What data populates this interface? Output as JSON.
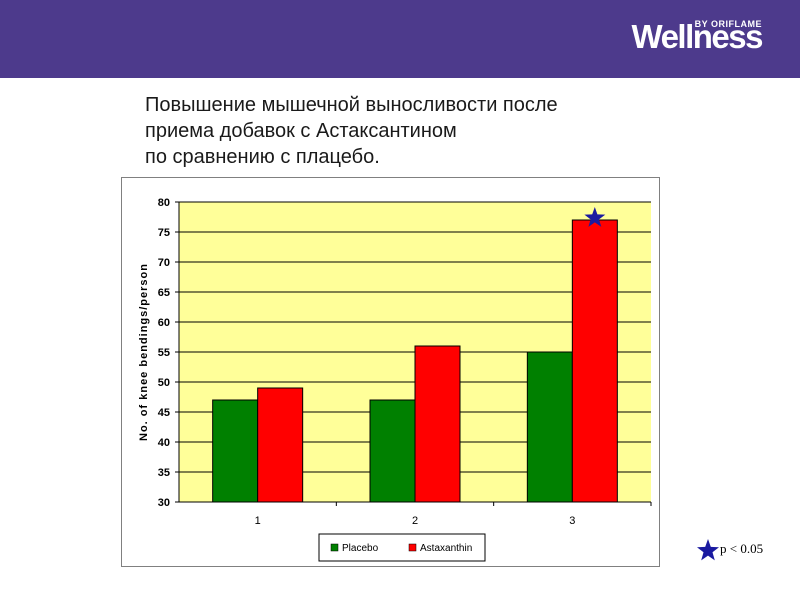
{
  "header": {
    "logo_text": "Wellness",
    "logo_by": "BY ORIFLAME",
    "background_color": "#4d3a8c"
  },
  "title_lines": [
    "Повышение мышечной выносливости после",
    "приема добавок с Астаксантином",
    "по сравнению с плацебо."
  ],
  "significance_note": {
    "icon": "star-icon",
    "text": "p < 0.05",
    "color": "#1a1aa0"
  },
  "chart_data": {
    "type": "bar",
    "categories": [
      "1",
      "2",
      "3"
    ],
    "series": [
      {
        "name": "Placebo",
        "values": [
          47,
          47,
          55
        ],
        "color": "#008000"
      },
      {
        "name": "Astaxanthin",
        "values": [
          49,
          56,
          77
        ],
        "color": "#ff0000"
      }
    ],
    "ylabel": "No. of knee bendings/person",
    "xlabel": "",
    "ylim": [
      30,
      80
    ],
    "yticks": [
      30,
      35,
      40,
      45,
      50,
      55,
      60,
      65,
      70,
      75,
      80
    ],
    "grid": true,
    "plot_background": "#ffff99",
    "legend_position": "bottom-center",
    "significant_markers": [
      {
        "category": "3",
        "series": "Astaxanthin"
      }
    ]
  }
}
